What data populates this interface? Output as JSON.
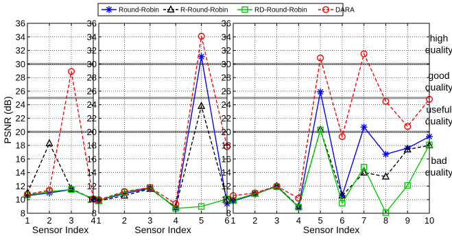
{
  "legend": {
    "entries": [
      {
        "name": "Round-Robin",
        "color": "#0000ff",
        "marker": "asterisk",
        "dash": "solid"
      },
      {
        "name": "R-Round-Robin",
        "color": "#000000",
        "marker": "triangle",
        "dash": "dashed"
      },
      {
        "name": "RD-Round-Robin",
        "color": "#00cc00",
        "marker": "square",
        "dash": "solid"
      },
      {
        "name": "DARA",
        "color": "#ff0000",
        "marker": "circle",
        "dash": "dashed"
      }
    ]
  },
  "ylabel": "PSNR (dB)",
  "quality_labels": [
    {
      "lines": [
        "high",
        "quality"
      ],
      "y": 33
    },
    {
      "lines": [
        "good",
        "quality"
      ],
      "y": 27.5
    },
    {
      "lines": [
        "useful",
        "quality"
      ],
      "y": 22.5
    },
    {
      "lines": [
        "bad",
        "quality"
      ],
      "y": 15
    }
  ],
  "threshold_lines": [
    20,
    25,
    30
  ],
  "chart_data": [
    {
      "type": "line",
      "xlabel": "Sensor Index",
      "ylabel": "PSNR (dB)",
      "xlim": [
        1,
        4
      ],
      "ylim": [
        8,
        36
      ],
      "x": [
        1,
        2,
        3,
        4
      ],
      "xticks": [
        "1",
        "2",
        "3",
        "4"
      ],
      "yticks": [
        "8",
        "10",
        "12",
        "14",
        "16",
        "18",
        "20",
        "22",
        "24",
        "26",
        "28",
        "30",
        "32",
        "34",
        "36"
      ],
      "grid": true,
      "series": [
        {
          "name": "Round-Robin",
          "values": [
            10.6,
            11.0,
            11.5,
            10.1
          ]
        },
        {
          "name": "R-Round-Robin",
          "values": [
            11.0,
            18.3,
            11.6,
            10.1
          ]
        },
        {
          "name": "RD-Round-Robin",
          "values": [
            10.7,
            11.2,
            11.5,
            10.1
          ]
        },
        {
          "name": "DARA",
          "values": [
            10.8,
            11.4,
            28.9,
            10.1
          ]
        }
      ]
    },
    {
      "type": "line",
      "xlabel": "Sensor Index",
      "ylabel": "",
      "xlim": [
        1,
        6
      ],
      "ylim": [
        8,
        36
      ],
      "x": [
        1,
        2,
        3,
        4,
        5,
        6
      ],
      "xticks": [
        "1",
        "2",
        "3",
        "4",
        "5",
        "6"
      ],
      "yticks": [
        "8",
        "10",
        "12",
        "14",
        "16",
        "18",
        "20",
        "22",
        "24",
        "26",
        "28",
        "30",
        "32",
        "34",
        "36"
      ],
      "grid": true,
      "series": [
        {
          "name": "Round-Robin",
          "values": [
            9.9,
            10.9,
            11.7,
            8.8,
            31.1,
            9.4
          ]
        },
        {
          "name": "R-Round-Robin",
          "values": [
            9.8,
            10.6,
            11.6,
            8.9,
            23.8,
            10.0
          ]
        },
        {
          "name": "RD-Round-Robin",
          "values": [
            9.9,
            11.1,
            11.8,
            8.7,
            9.0,
            10.1
          ]
        },
        {
          "name": "DARA",
          "values": [
            10.0,
            11.2,
            11.8,
            9.4,
            34.1,
            17.8
          ]
        }
      ]
    },
    {
      "type": "line",
      "xlabel": "Sensor Index",
      "ylabel": "",
      "xlim": [
        1,
        10
      ],
      "ylim": [
        8,
        36
      ],
      "x": [
        1,
        2,
        3,
        4,
        5,
        6,
        7,
        8,
        9,
        10
      ],
      "xticks": [
        "1",
        "2",
        "3",
        "4",
        "5",
        "6",
        "7",
        "8",
        "9",
        "10"
      ],
      "yticks": [
        "8",
        "10",
        "12",
        "14",
        "16",
        "18",
        "20",
        "22",
        "24",
        "26",
        "28",
        "30",
        "32",
        "34",
        "36"
      ],
      "grid": true,
      "series": [
        {
          "name": "Round-Robin",
          "values": [
            9.8,
            10.8,
            12.0,
            8.9,
            25.9,
            10.6,
            20.7,
            16.7,
            17.6,
            19.3
          ]
        },
        {
          "name": "R-Round-Robin",
          "values": [
            9.9,
            10.9,
            12.0,
            9.0,
            20.3,
            10.6,
            14.0,
            13.4,
            17.4,
            18.0
          ]
        },
        {
          "name": "RD-Round-Robin",
          "values": [
            9.9,
            10.9,
            11.9,
            8.9,
            20.3,
            9.5,
            14.8,
            8.1,
            12.1,
            18.1
          ]
        },
        {
          "name": "DARA",
          "values": [
            10.6,
            11.0,
            12.0,
            10.2,
            30.9,
            19.3,
            31.5,
            24.5,
            20.8,
            24.8
          ]
        }
      ]
    }
  ]
}
